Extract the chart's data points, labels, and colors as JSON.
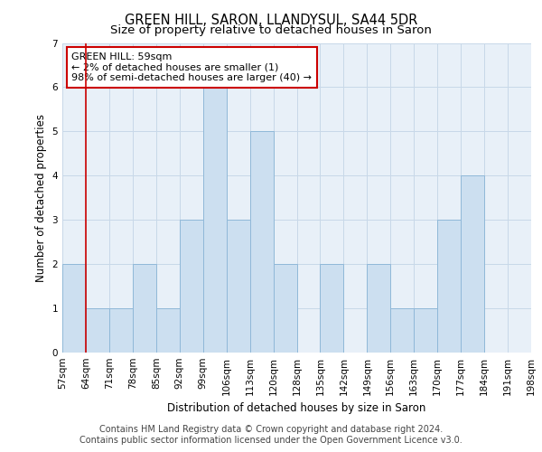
{
  "title1": "GREEN HILL, SARON, LLANDYSUL, SA44 5DR",
  "title2": "Size of property relative to detached houses in Saron",
  "xlabel": "Distribution of detached houses by size in Saron",
  "ylabel": "Number of detached properties",
  "bin_labels": [
    "57sqm",
    "64sqm",
    "71sqm",
    "78sqm",
    "85sqm",
    "92sqm",
    "99sqm",
    "106sqm",
    "113sqm",
    "120sqm",
    "128sqm",
    "135sqm",
    "142sqm",
    "149sqm",
    "156sqm",
    "163sqm",
    "170sqm",
    "177sqm",
    "184sqm",
    "191sqm",
    "198sqm"
  ],
  "values": [
    2,
    1,
    1,
    2,
    1,
    3,
    6,
    3,
    5,
    2,
    0,
    2,
    0,
    2,
    1,
    1,
    3,
    4,
    0,
    0
  ],
  "bar_color": "#ccdff0",
  "bar_edge_color": "#90b8d8",
  "grid_color": "#c8d8e8",
  "background_color": "#e8f0f8",
  "annotation_box_facecolor": "#ffffff",
  "annotation_border_color": "#cc0000",
  "annotation_text": "GREEN HILL: 59sqm\n← 2% of detached houses are smaller (1)\n98% of semi-detached houses are larger (40) →",
  "footnote1": "Contains HM Land Registry data © Crown copyright and database right 2024.",
  "footnote2": "Contains public sector information licensed under the Open Government Licence v3.0.",
  "ylim": [
    0,
    7
  ],
  "yticks": [
    0,
    1,
    2,
    3,
    4,
    5,
    6,
    7
  ],
  "title1_fontsize": 10.5,
  "title2_fontsize": 9.5,
  "xlabel_fontsize": 8.5,
  "ylabel_fontsize": 8.5,
  "tick_fontsize": 7.5,
  "annotation_fontsize": 8,
  "footnote_fontsize": 7
}
